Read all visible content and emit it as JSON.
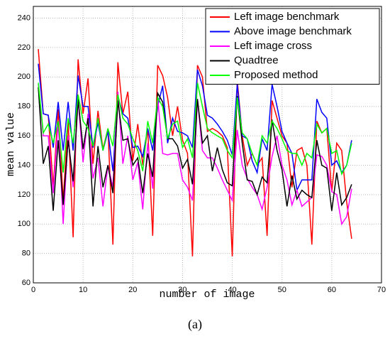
{
  "chart_data": {
    "type": "line",
    "x": [
      1,
      2,
      3,
      4,
      5,
      6,
      7,
      8,
      9,
      10,
      11,
      12,
      13,
      14,
      15,
      16,
      17,
      18,
      19,
      20,
      21,
      22,
      23,
      24,
      25,
      26,
      27,
      28,
      29,
      30,
      31,
      32,
      33,
      34,
      35,
      36,
      37,
      38,
      39,
      40,
      41,
      42,
      43,
      44,
      45,
      46,
      47,
      48,
      49,
      50,
      51,
      52,
      53,
      54,
      55,
      56,
      57,
      58,
      59,
      60,
      61,
      62,
      63,
      64
    ],
    "series": [
      {
        "name": "Left image benchmark",
        "color": "#ff0000",
        "values": [
          219,
          175,
          174,
          125,
          178,
          116,
          170,
          91,
          212,
          175,
          199,
          141,
          177,
          151,
          165,
          86,
          210,
          175,
          190,
          143,
          168,
          140,
          165,
          92,
          208,
          201,
          186,
          160,
          180,
          157,
          148,
          78,
          208,
          200,
          163,
          165,
          163,
          160,
          152,
          78,
          198,
          160,
          140,
          148,
          140,
          145,
          92,
          184,
          172,
          160,
          155,
          125,
          150,
          152,
          140,
          86,
          170,
          162,
          165,
          122,
          155,
          150,
          115,
          90
        ]
      },
      {
        "name": "Above image benchmark",
        "color": "#0000ff",
        "values": [
          209,
          175,
          174,
          152,
          183,
          150,
          183,
          150,
          201,
          180,
          180,
          152,
          169,
          150,
          163,
          136,
          187,
          175,
          172,
          152,
          153,
          146,
          165,
          150,
          180,
          194,
          155,
          172,
          163,
          162,
          160,
          152,
          205,
          194,
          174,
          172,
          168,
          163,
          157,
          147,
          195,
          160,
          158,
          143,
          135,
          158,
          150,
          195,
          180,
          163,
          155,
          148,
          123,
          130,
          130,
          130,
          185,
          176,
          172,
          140,
          143,
          135,
          140,
          157
        ]
      },
      {
        "name": "Left image cross",
        "color": "#ff00ff",
        "values": [
          195,
          160,
          160,
          121,
          170,
          100,
          160,
          125,
          185,
          142,
          175,
          131,
          145,
          112,
          140,
          125,
          190,
          141,
          160,
          130,
          142,
          110,
          155,
          124,
          186,
          148,
          147,
          148,
          148,
          130,
          125,
          116,
          185,
          150,
          145,
          145,
          138,
          130,
          123,
          116,
          164,
          140,
          131,
          125,
          120,
          110,
          125,
          146,
          160,
          140,
          130,
          113,
          123,
          112,
          115,
          118,
          147,
          146,
          140,
          122,
          120,
          100,
          105,
          124
        ]
      },
      {
        "name": "Quadtree",
        "color": "#000000",
        "values": [
          193,
          141,
          153,
          109,
          157,
          113,
          157,
          129,
          185,
          151,
          172,
          112,
          153,
          125,
          140,
          121,
          184,
          157,
          158,
          140,
          145,
          121,
          148,
          132,
          189,
          183,
          158,
          158,
          153,
          138,
          144,
          127,
          185,
          155,
          160,
          136,
          152,
          137,
          128,
          126,
          187,
          155,
          130,
          129,
          120,
          132,
          128,
          171,
          150,
          137,
          112,
          133,
          117,
          123,
          120,
          118,
          157,
          140,
          138,
          109,
          135,
          113,
          118,
          127
        ]
      },
      {
        "name": "Proposed method",
        "color": "#00ff00",
        "values": [
          196,
          162,
          168,
          155,
          170,
          135,
          172,
          155,
          188,
          170,
          165,
          153,
          172,
          150,
          165,
          153,
          188,
          172,
          168,
          158,
          150,
          136,
          170,
          155,
          186,
          180,
          158,
          168,
          170,
          152,
          158,
          145,
          196,
          180,
          165,
          162,
          160,
          158,
          150,
          145,
          186,
          162,
          158,
          148,
          140,
          160,
          155,
          170,
          165,
          158,
          150,
          148,
          148,
          140,
          148,
          145,
          168,
          162,
          165,
          148,
          150,
          134,
          140,
          155
        ]
      }
    ],
    "xlabel": "number of image",
    "ylabel": "mean value",
    "caption": "(a)",
    "xlim": [
      0,
      70
    ],
    "xticks": [
      0,
      10,
      20,
      30,
      40,
      50,
      60,
      70
    ],
    "ylim": [
      60,
      248
    ],
    "yticks": [
      60,
      80,
      100,
      120,
      140,
      160,
      180,
      200,
      220,
      240
    ],
    "grid": true,
    "legend": "upper right"
  }
}
